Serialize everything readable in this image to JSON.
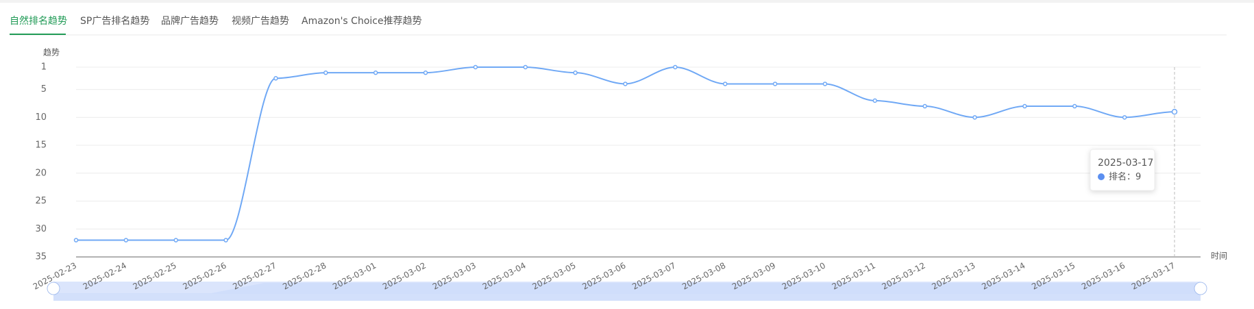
{
  "tabs": [
    "自然排名趋势",
    "SP广告排名趋势",
    "品牌广告趋势",
    "视频广告趋势",
    "Amazon's Choice推荐趋势"
  ],
  "chart_data": {
    "type": "line",
    "y_label": "趋势",
    "x_label": "时间",
    "categories": [
      "2025-02-23",
      "2025-02-24",
      "2025-02-25",
      "2025-02-26",
      "2025-02-27",
      "2025-02-28",
      "2025-03-01",
      "2025-03-02",
      "2025-03-03",
      "2025-03-04",
      "2025-03-05",
      "2025-03-06",
      "2025-03-07",
      "2025-03-08",
      "2025-03-09",
      "2025-03-10",
      "2025-03-11",
      "2025-03-12",
      "2025-03-13",
      "2025-03-14",
      "2025-03-15",
      "2025-03-16",
      "2025-03-17"
    ],
    "series": [
      {
        "name": "排名",
        "color": "#6fa8f5",
        "values": [
          32,
          32,
          32,
          32,
          3,
          2,
          2,
          2,
          1,
          1,
          2,
          4,
          1,
          4,
          4,
          4,
          7,
          8,
          10,
          8,
          8,
          10,
          9
        ]
      }
    ],
    "ylim": [
      1,
      35
    ],
    "yticks": [
      1,
      5,
      10,
      15,
      20,
      25,
      30,
      35
    ],
    "y_inverted": true,
    "grid": true,
    "tooltip": {
      "label": "排名："
    }
  }
}
